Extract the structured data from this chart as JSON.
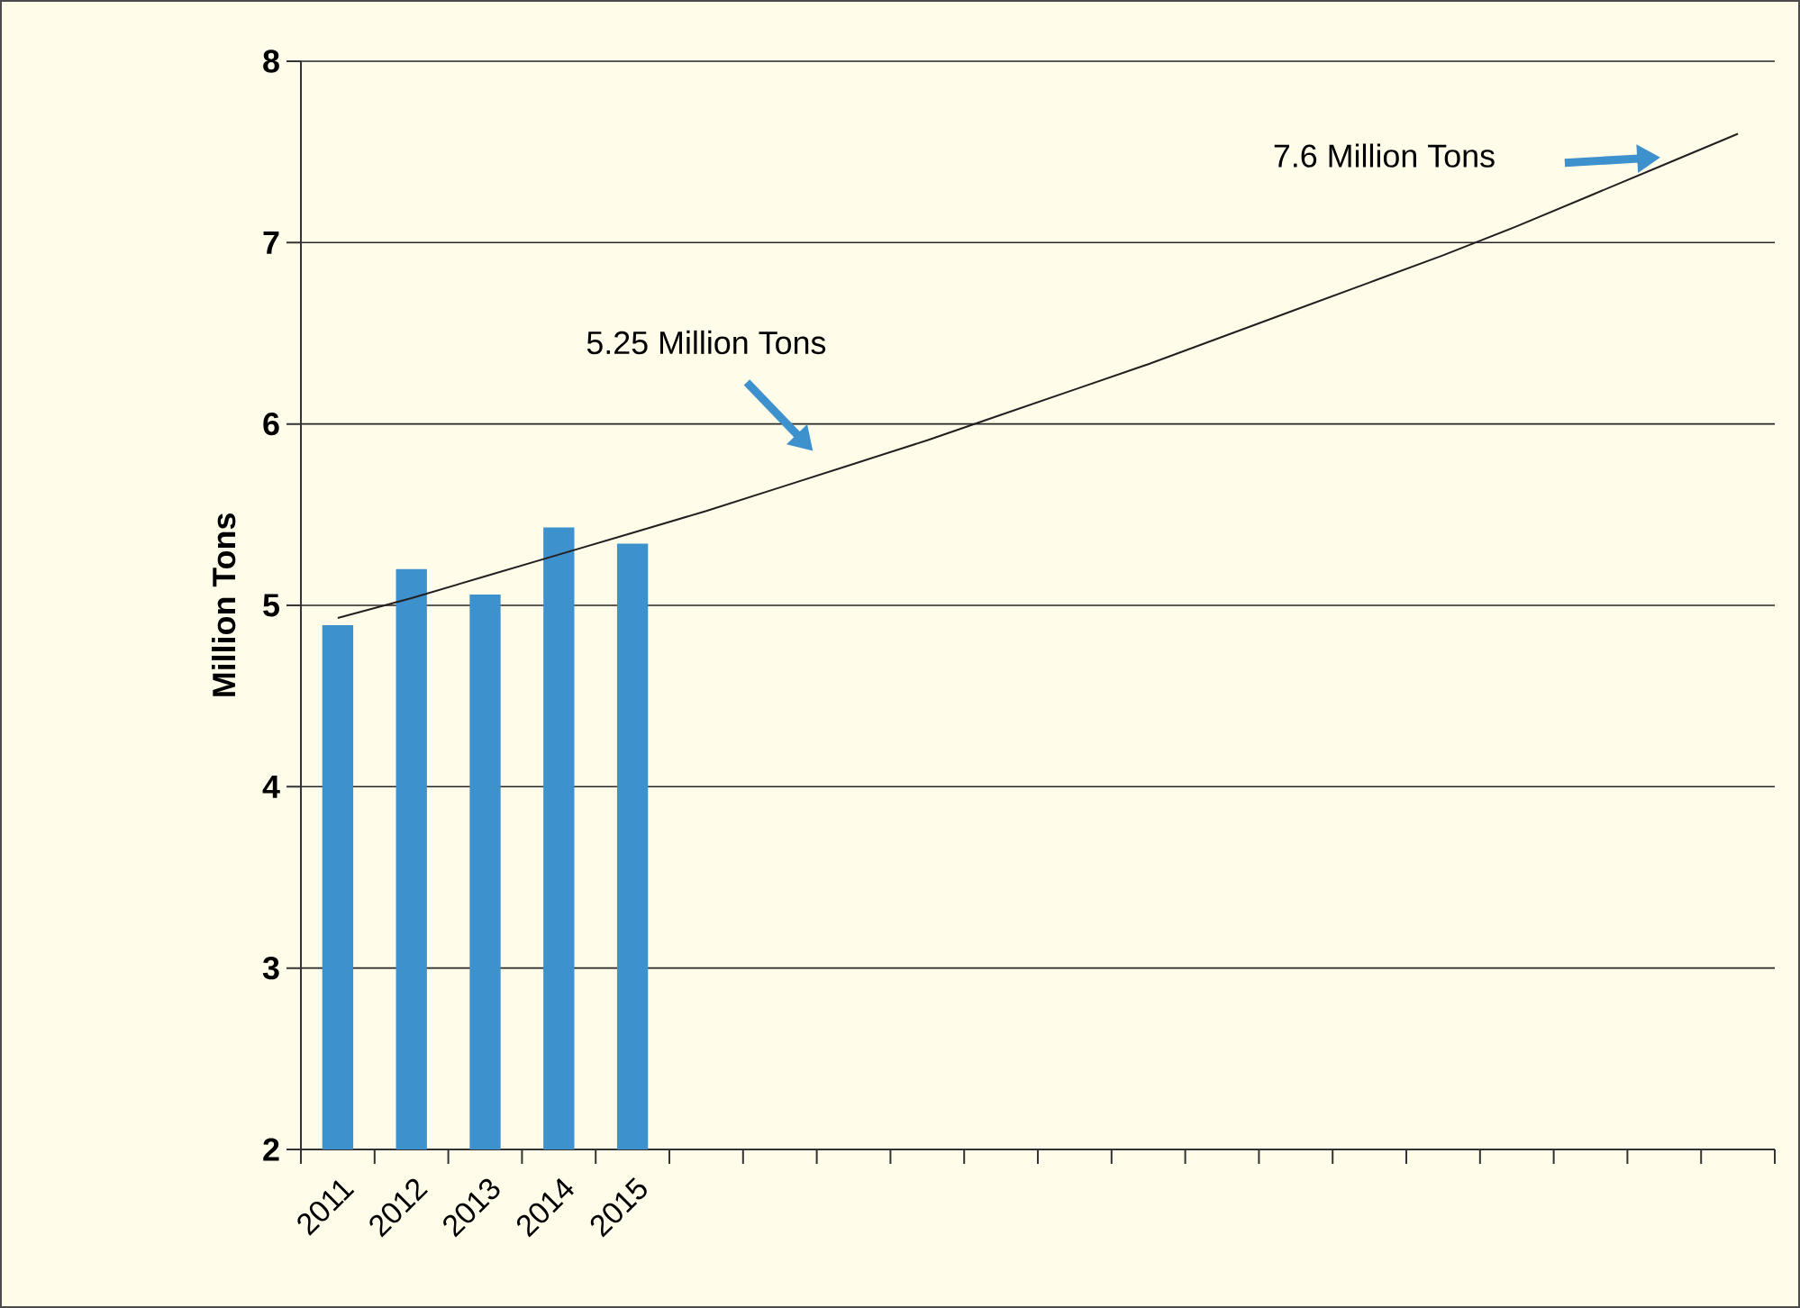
{
  "chart_data": {
    "type": "bar",
    "ylabel": "Million Tons",
    "categories": [
      "2011",
      "2012",
      "2013",
      "2014",
      "2015",
      null,
      null,
      null,
      null,
      null,
      null,
      null,
      null,
      null,
      null,
      null,
      null,
      null,
      null,
      null
    ],
    "series": [
      {
        "color": "#3d91cd",
        "values": [
          4.89,
          5.2,
          5.06,
          5.43,
          5.34,
          null,
          null,
          null,
          null,
          null,
          null,
          null,
          null,
          null,
          null,
          null,
          null,
          null,
          null,
          null
        ]
      },
      {
        "type": "line",
        "color": "#231f20",
        "values": [
          4.93,
          5.04,
          5.16,
          5.28,
          5.4,
          5.52,
          5.65,
          5.78,
          5.91,
          6.05,
          6.19,
          6.33,
          6.48,
          6.63,
          6.78,
          6.93,
          7.09,
          7.26,
          7.43,
          7.6
        ]
      }
    ],
    "ylim": [
      2,
      8
    ],
    "yticks": [
      2,
      3,
      4,
      5,
      6,
      7,
      8
    ],
    "grid": "y",
    "annotations": [
      "5.25 Million Tons",
      "7.6 Million Tons"
    ]
  }
}
